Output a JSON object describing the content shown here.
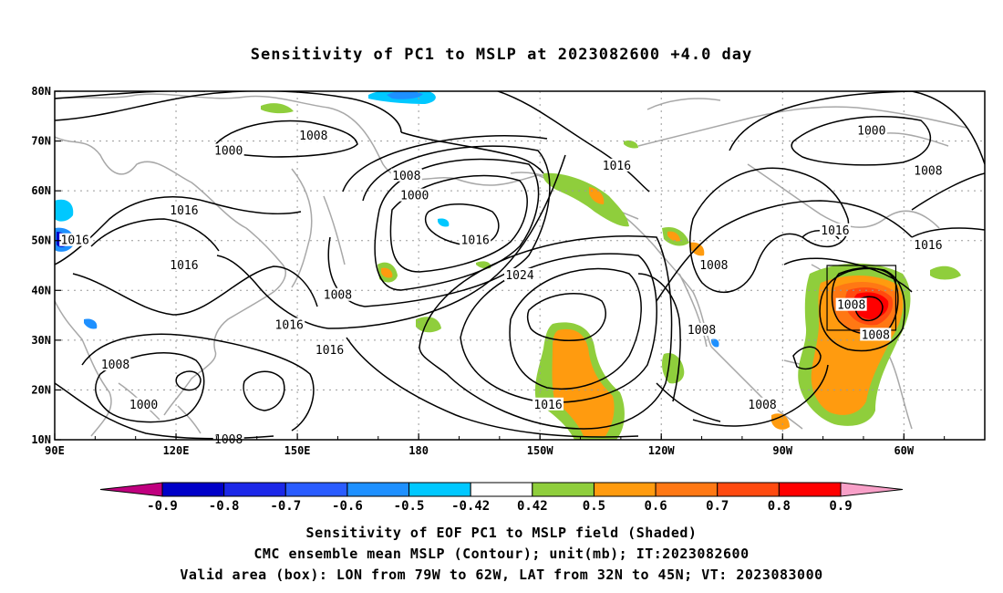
{
  "title": "Sensitivity of PC1 to MSLP at 2023082600 +4.0 day",
  "map": {
    "lon_range": [
      90,
      320
    ],
    "lat_range": [
      10,
      80
    ],
    "x_ticks": [
      {
        "lon": 90,
        "label": "90E"
      },
      {
        "lon": 120,
        "label": "120E"
      },
      {
        "lon": 150,
        "label": "150E"
      },
      {
        "lon": 180,
        "label": "180"
      },
      {
        "lon": 210,
        "label": "150W"
      },
      {
        "lon": 240,
        "label": "120W"
      },
      {
        "lon": 270,
        "label": "90W"
      },
      {
        "lon": 300,
        "label": "60W"
      }
    ],
    "y_ticks": [
      {
        "lat": 10,
        "label": "10N"
      },
      {
        "lat": 20,
        "label": "20N"
      },
      {
        "lat": 30,
        "label": "30N"
      },
      {
        "lat": 40,
        "label": "40N"
      },
      {
        "lat": 50,
        "label": "50N"
      },
      {
        "lat": 60,
        "label": "60N"
      },
      {
        "lat": 70,
        "label": "70N"
      },
      {
        "lat": 80,
        "label": "80N"
      }
    ],
    "grid": "dotted",
    "valid_box": {
      "lon_min": 281,
      "lon_max": 298,
      "lat_min": 32,
      "lat_max": 45
    },
    "contour_labels": [
      {
        "text": "1000",
        "lon": 133,
        "lat": 68
      },
      {
        "text": "1008",
        "lon": 154,
        "lat": 71
      },
      {
        "text": "1008",
        "lon": 177,
        "lat": 63
      },
      {
        "text": "1000",
        "lon": 179,
        "lat": 59
      },
      {
        "text": "1016",
        "lon": 122,
        "lat": 56
      },
      {
        "text": "1016",
        "lon": 95,
        "lat": 50
      },
      {
        "text": "1016",
        "lon": 122,
        "lat": 45
      },
      {
        "text": "1008",
        "lon": 160,
        "lat": 39
      },
      {
        "text": "1016",
        "lon": 148,
        "lat": 33
      },
      {
        "text": "1016",
        "lon": 158,
        "lat": 28
      },
      {
        "text": "1016",
        "lon": 194,
        "lat": 50
      },
      {
        "text": "1024",
        "lon": 205,
        "lat": 43
      },
      {
        "text": "1016",
        "lon": 212,
        "lat": 17
      },
      {
        "text": "1008",
        "lon": 105,
        "lat": 25
      },
      {
        "text": "1000",
        "lon": 112,
        "lat": 17
      },
      {
        "text": "1008",
        "lon": 133,
        "lat": 10
      },
      {
        "text": "1016",
        "lon": 229,
        "lat": 65
      },
      {
        "text": "1008",
        "lon": 250,
        "lat": 32
      },
      {
        "text": "1008",
        "lon": 253,
        "lat": 45
      },
      {
        "text": "1008",
        "lon": 265,
        "lat": 17
      },
      {
        "text": "1016",
        "lon": 283,
        "lat": 52
      },
      {
        "text": "1000",
        "lon": 292,
        "lat": 72
      },
      {
        "text": "1008",
        "lon": 306,
        "lat": 64
      },
      {
        "text": "1016",
        "lon": 306,
        "lat": 49
      },
      {
        "text": "1008",
        "lon": 287,
        "lat": 37
      },
      {
        "text": "1008",
        "lon": 293,
        "lat": 31
      }
    ]
  },
  "colorbar": {
    "labels": [
      "-0.9",
      "-0.8",
      "-0.7",
      "-0.6",
      "-0.5",
      "-0.42",
      "0.42",
      "0.5",
      "0.6",
      "0.7",
      "0.8",
      "0.9"
    ],
    "colors": [
      "#c0007f",
      "#0000c8",
      "#1c28e8",
      "#2a5cff",
      "#1e90ff",
      "#00c8ff",
      "#ffffff",
      "#8fce3c",
      "#ff9b0f",
      "#ff7814",
      "#ff4a10",
      "#ff0000",
      "#f8a0c8"
    ]
  },
  "captions": [
    "Sensitivity of EOF PC1 to MSLP field (Shaded)",
    "CMC ensemble mean MSLP (Contour); unit(mb); IT:2023082600",
    "Valid area (box): LON from 79W to 62W, LAT from 32N to 45N; VT: 2023083000"
  ]
}
